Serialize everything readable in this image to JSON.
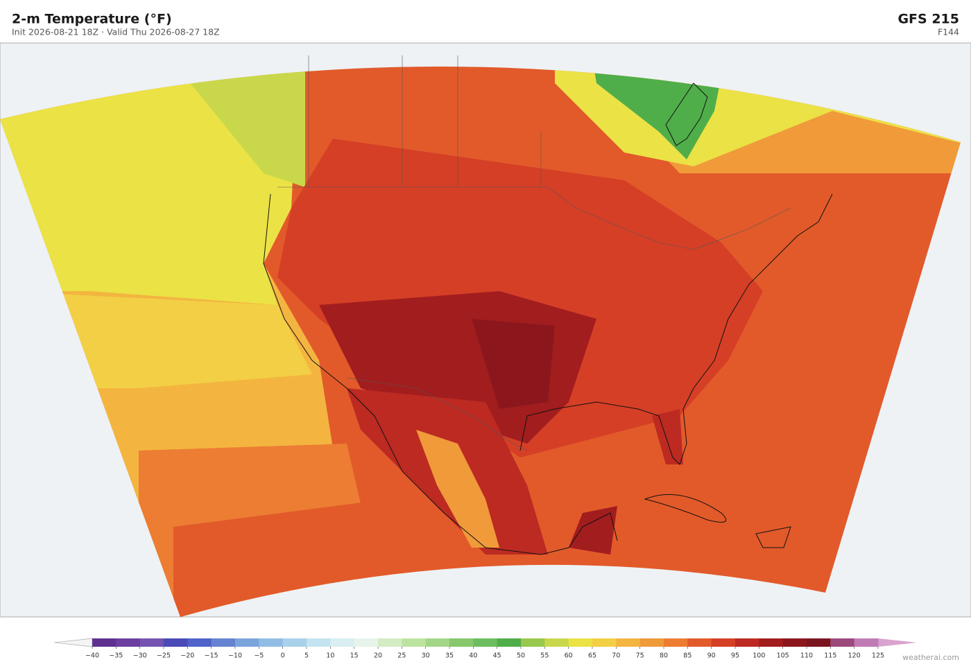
{
  "header": {
    "title": "2-m Temperature  (°F)",
    "subtitle": "Init 2026-08-21 18Z  ·  Valid Thu 2026-08-27 18Z",
    "model": "GFS  215",
    "forecast_hour": "F144"
  },
  "colorbar": {
    "ticks": [
      {
        "value": -40,
        "label": "−40"
      },
      {
        "value": -35,
        "label": "−35"
      },
      {
        "value": -30,
        "label": "−30"
      },
      {
        "value": -25,
        "label": "−25"
      },
      {
        "value": -20,
        "label": "−20"
      },
      {
        "value": -15,
        "label": "−15"
      },
      {
        "value": -10,
        "label": "−10"
      },
      {
        "value": -5,
        "label": "−5"
      },
      0,
      5,
      10,
      15,
      20,
      25,
      30,
      35,
      40,
      45,
      50,
      55,
      60,
      65,
      70,
      75,
      80,
      85,
      90,
      95,
      100,
      105,
      110,
      115,
      120,
      125
    ],
    "colors": [
      "#5e3191",
      "#6b3ea0",
      "#7553b0",
      "#4a4ab8",
      "#4f63c8",
      "#6583d0",
      "#7ca4dc",
      "#91bde4",
      "#a9d1ea",
      "#c3e3f0",
      "#d8eef2",
      "#e6f4ea",
      "#d3ecc4",
      "#bde3a0",
      "#a3d787",
      "#86c86b",
      "#6cbd5f",
      "#4fae4a",
      "#98c84e",
      "#c9d84b",
      "#ebe246",
      "#f3cf45",
      "#f4b540",
      "#f09a3a",
      "#ec7d33",
      "#e25a2a",
      "#d53f26",
      "#bc2a22",
      "#a21d1e",
      "#8b171c",
      "#7a1520",
      "#9c4a7c",
      "#c07ab4"
    ],
    "under_color": "#f4f4f4",
    "over_color": "#d9a3cf"
  },
  "credit": "weatherai.com"
}
